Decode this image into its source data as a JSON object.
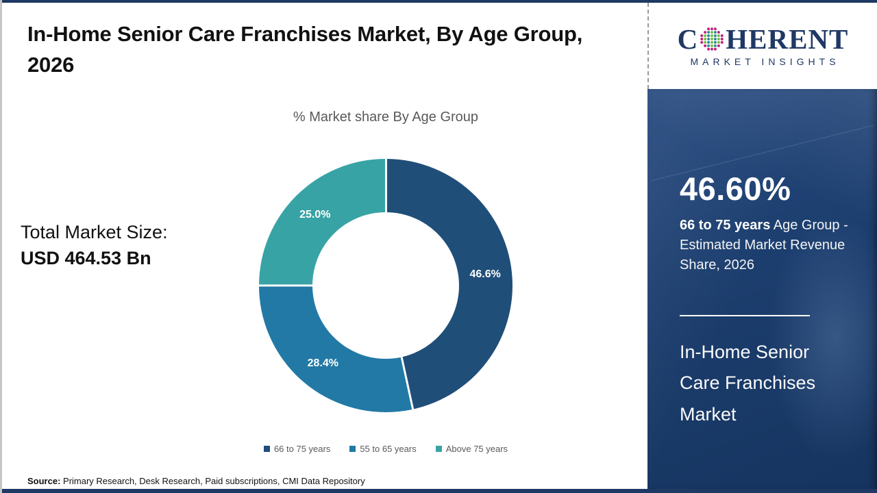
{
  "theme": {
    "brand-navy": "#1f3864",
    "sidebar-bg": "#1c3e6e",
    "text-gray": "#595959"
  },
  "header": {
    "title": "In-Home Senior Care Franchises Market, By Age Group, 2026"
  },
  "logo": {
    "c": "C",
    "rest": "HERENT",
    "tagline": "MARKET INSIGHTS",
    "globe_colors": {
      "ring": "#c0227e",
      "teal": "#2a8a9e",
      "green": "#79bd43"
    }
  },
  "chart_data": {
    "type": "pie",
    "donut": true,
    "title": "% Market share By Age Group",
    "categories": [
      "66 to 75 years",
      "55 to 65 years",
      "Above 75 years"
    ],
    "values": [
      46.6,
      28.4,
      25.0
    ],
    "labels": [
      "46.6%",
      "28.4%",
      "25.0%"
    ],
    "colors": [
      "#1f4e79",
      "#2279a5",
      "#38a3a5"
    ],
    "legend_position": "bottom"
  },
  "stats": {
    "total_label": "Total Market Size:",
    "total_value": "USD 464.53 Bn"
  },
  "sidebar": {
    "stat_value": "46.60%",
    "stat_bold": "66 to 75 years",
    "stat_rest": " Age Group - Estimated Market Revenue Share, 2026",
    "market_title": "In-Home Senior Care Franchises Market"
  },
  "footer": {
    "source_label": "Source:",
    "source_text": " Primary Research, Desk Research, Paid subscriptions, CMI Data Repository"
  }
}
